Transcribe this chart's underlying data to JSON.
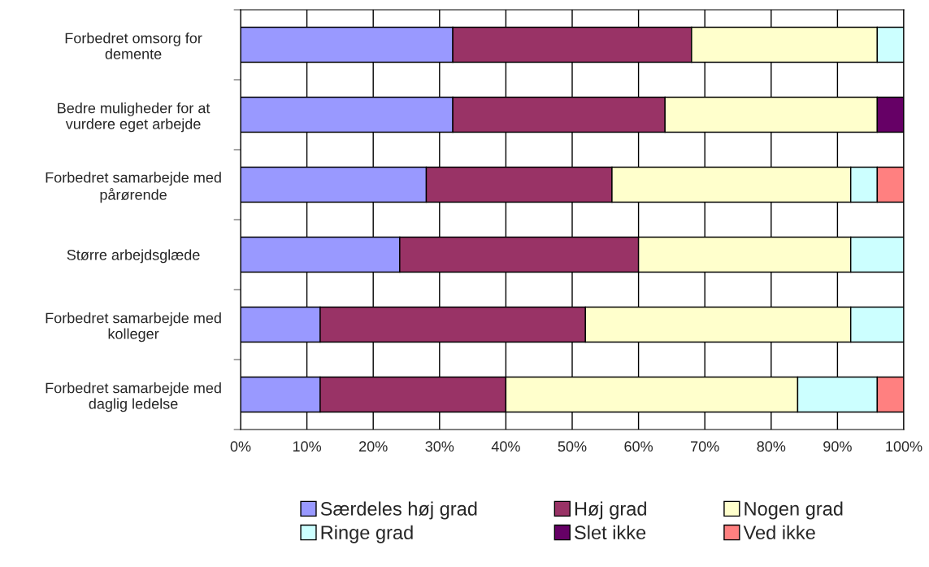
{
  "chart_data": {
    "type": "bar",
    "orientation": "horizontal",
    "stacked": true,
    "categories": [
      "Forbedret omsorg for\ndemente",
      "Bedre muligheder for at\nvurdere eget arbejde",
      "Forbedret samarbejde med\npårørende",
      "Større arbejdsglæde",
      "Forbedret samarbejde med\nkolleger",
      "Forbedret samarbejde med\ndaglig ledelse"
    ],
    "series": [
      {
        "name": "Særdeles høj grad",
        "color": "#9999ff",
        "values": [
          32,
          32,
          28,
          24,
          12,
          12
        ]
      },
      {
        "name": "Høj grad",
        "color": "#993366",
        "values": [
          36,
          32,
          28,
          36,
          40,
          28
        ]
      },
      {
        "name": "Nogen grad",
        "color": "#ffffcc",
        "values": [
          28,
          32,
          36,
          32,
          40,
          44
        ]
      },
      {
        "name": "Ringe grad",
        "color": "#ccffff",
        "values": [
          4,
          null,
          4,
          8,
          8,
          12
        ]
      },
      {
        "name": "Slet ikke",
        "color": "#660066",
        "values": [
          null,
          4,
          null,
          null,
          null,
          null
        ]
      },
      {
        "name": "Ved ikke",
        "color": "#ff8080",
        "values": [
          null,
          null,
          4,
          null,
          null,
          4
        ]
      }
    ],
    "xlim": [
      0,
      100
    ],
    "xticks": [
      {
        "value": 0,
        "label": "0%"
      },
      {
        "value": 10,
        "label": "10%"
      },
      {
        "value": 20,
        "label": "20%"
      },
      {
        "value": 30,
        "label": "30%"
      },
      {
        "value": 40,
        "label": "40%"
      },
      {
        "value": 50,
        "label": "50%"
      },
      {
        "value": 60,
        "label": "60%"
      },
      {
        "value": 70,
        "label": "70%"
      },
      {
        "value": 80,
        "label": "80%"
      },
      {
        "value": 90,
        "label": "90%"
      },
      {
        "value": 100,
        "label": "100%"
      }
    ],
    "grid": "x",
    "legend": "bottom"
  }
}
